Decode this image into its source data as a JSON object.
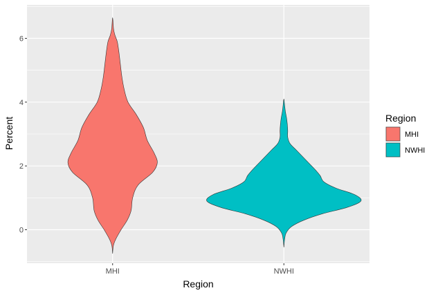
{
  "chart_data": {
    "type": "violin",
    "xlabel": "Region",
    "ylabel": "Percent",
    "categories": [
      "MHI",
      "NWHI"
    ],
    "ylim": [
      -1.05,
      7.05
    ],
    "y_ticks": [
      0,
      2,
      4,
      6
    ],
    "grid": true,
    "legend": {
      "title": "Region",
      "position": "right",
      "items": [
        {
          "label": "MHI",
          "color": "#F8766D"
        },
        {
          "label": "NWHI",
          "color": "#00BFC4"
        }
      ]
    },
    "series": [
      {
        "name": "MHI",
        "color": "#F8766D",
        "min": -0.75,
        "max": 6.65,
        "profile": [
          {
            "y": -0.75,
            "w": 0.0
          },
          {
            "y": -0.5,
            "w": 0.01
          },
          {
            "y": -0.3,
            "w": 0.04
          },
          {
            "y": 0.0,
            "w": 0.11
          },
          {
            "y": 0.3,
            "w": 0.19
          },
          {
            "y": 0.6,
            "w": 0.24
          },
          {
            "y": 1.0,
            "w": 0.26
          },
          {
            "y": 1.4,
            "w": 0.33
          },
          {
            "y": 1.8,
            "w": 0.52
          },
          {
            "y": 2.1,
            "w": 0.58
          },
          {
            "y": 2.4,
            "w": 0.54
          },
          {
            "y": 2.8,
            "w": 0.45
          },
          {
            "y": 3.2,
            "w": 0.4
          },
          {
            "y": 3.6,
            "w": 0.31
          },
          {
            "y": 4.0,
            "w": 0.2
          },
          {
            "y": 4.4,
            "w": 0.15
          },
          {
            "y": 4.8,
            "w": 0.12
          },
          {
            "y": 5.2,
            "w": 0.1
          },
          {
            "y": 5.6,
            "w": 0.08
          },
          {
            "y": 5.9,
            "w": 0.06
          },
          {
            "y": 6.1,
            "w": 0.03
          },
          {
            "y": 6.3,
            "w": 0.012
          },
          {
            "y": 6.65,
            "w": 0.0
          }
        ]
      },
      {
        "name": "NWHI",
        "color": "#00BFC4",
        "min": -0.55,
        "max": 4.1,
        "profile": [
          {
            "y": -0.55,
            "w": 0.0
          },
          {
            "y": -0.3,
            "w": 0.01
          },
          {
            "y": -0.1,
            "w": 0.03
          },
          {
            "y": 0.1,
            "w": 0.1
          },
          {
            "y": 0.3,
            "w": 0.26
          },
          {
            "y": 0.5,
            "w": 0.5
          },
          {
            "y": 0.7,
            "w": 0.82
          },
          {
            "y": 0.9,
            "w": 1.0
          },
          {
            "y": 1.1,
            "w": 0.92
          },
          {
            "y": 1.3,
            "w": 0.68
          },
          {
            "y": 1.5,
            "w": 0.52
          },
          {
            "y": 1.7,
            "w": 0.47
          },
          {
            "y": 1.9,
            "w": 0.4
          },
          {
            "y": 2.1,
            "w": 0.32
          },
          {
            "y": 2.3,
            "w": 0.24
          },
          {
            "y": 2.5,
            "w": 0.16
          },
          {
            "y": 2.7,
            "w": 0.08
          },
          {
            "y": 2.9,
            "w": 0.05
          },
          {
            "y": 3.1,
            "w": 0.05
          },
          {
            "y": 3.3,
            "w": 0.045
          },
          {
            "y": 3.5,
            "w": 0.035
          },
          {
            "y": 3.7,
            "w": 0.02
          },
          {
            "y": 3.9,
            "w": 0.01
          },
          {
            "y": 4.1,
            "w": 0.0
          }
        ]
      }
    ]
  }
}
